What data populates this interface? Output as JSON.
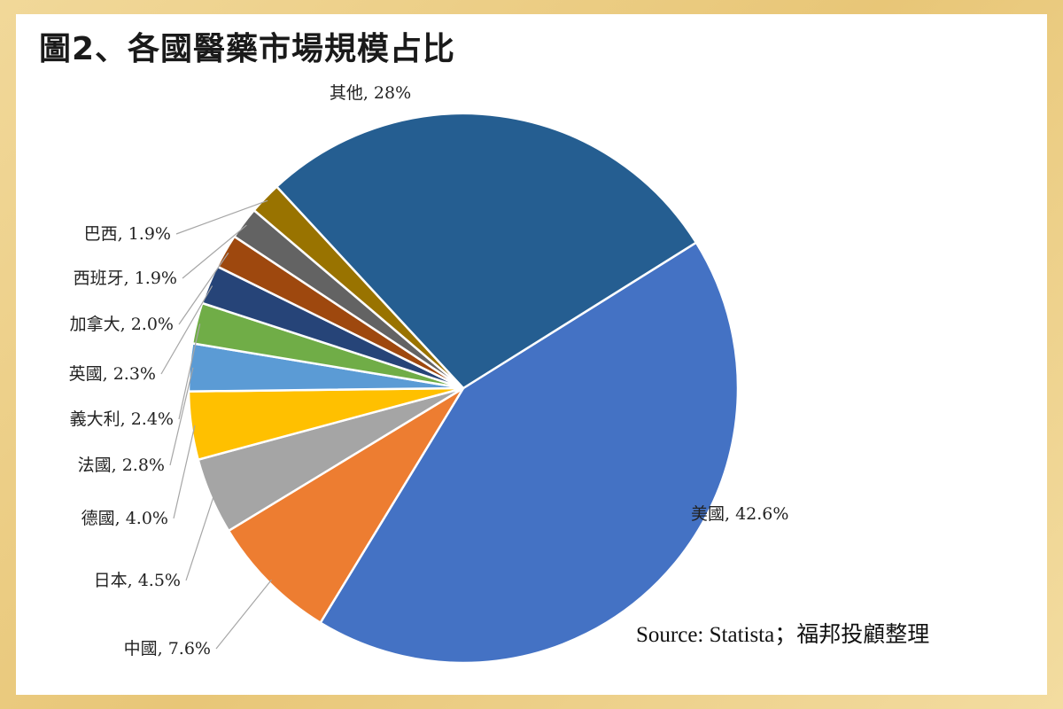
{
  "chart_data": {
    "type": "pie",
    "title": "圖2、各國醫藥市場規模占比",
    "unit": "%",
    "slices": [
      {
        "label": "美國",
        "value": 42.6,
        "display": "42.6%",
        "color": "#4472c4"
      },
      {
        "label": "中國",
        "value": 7.6,
        "display": "7.6%",
        "color": "#ed7d31"
      },
      {
        "label": "日本",
        "value": 4.5,
        "display": "4.5%",
        "color": "#a5a5a5"
      },
      {
        "label": "德國",
        "value": 4.0,
        "display": "4.0%",
        "color": "#ffc000"
      },
      {
        "label": "法國",
        "value": 2.8,
        "display": "2.8%",
        "color": "#5b9bd5"
      },
      {
        "label": "義大利",
        "value": 2.4,
        "display": "2.4%",
        "color": "#70ad47"
      },
      {
        "label": "英國",
        "value": 2.3,
        "display": "2.3%",
        "color": "#264478"
      },
      {
        "label": "加拿大",
        "value": 2.0,
        "display": "2.0%",
        "color": "#9e480e"
      },
      {
        "label": "西班牙",
        "value": 1.9,
        "display": "1.9%",
        "color": "#636363"
      },
      {
        "label": "巴西",
        "value": 1.9,
        "display": "1.9%",
        "color": "#997300"
      },
      {
        "label": "其他",
        "value": 28,
        "display": "28%",
        "color": "#255e91"
      }
    ],
    "source": "Source: Statista；福邦投顧整理"
  }
}
